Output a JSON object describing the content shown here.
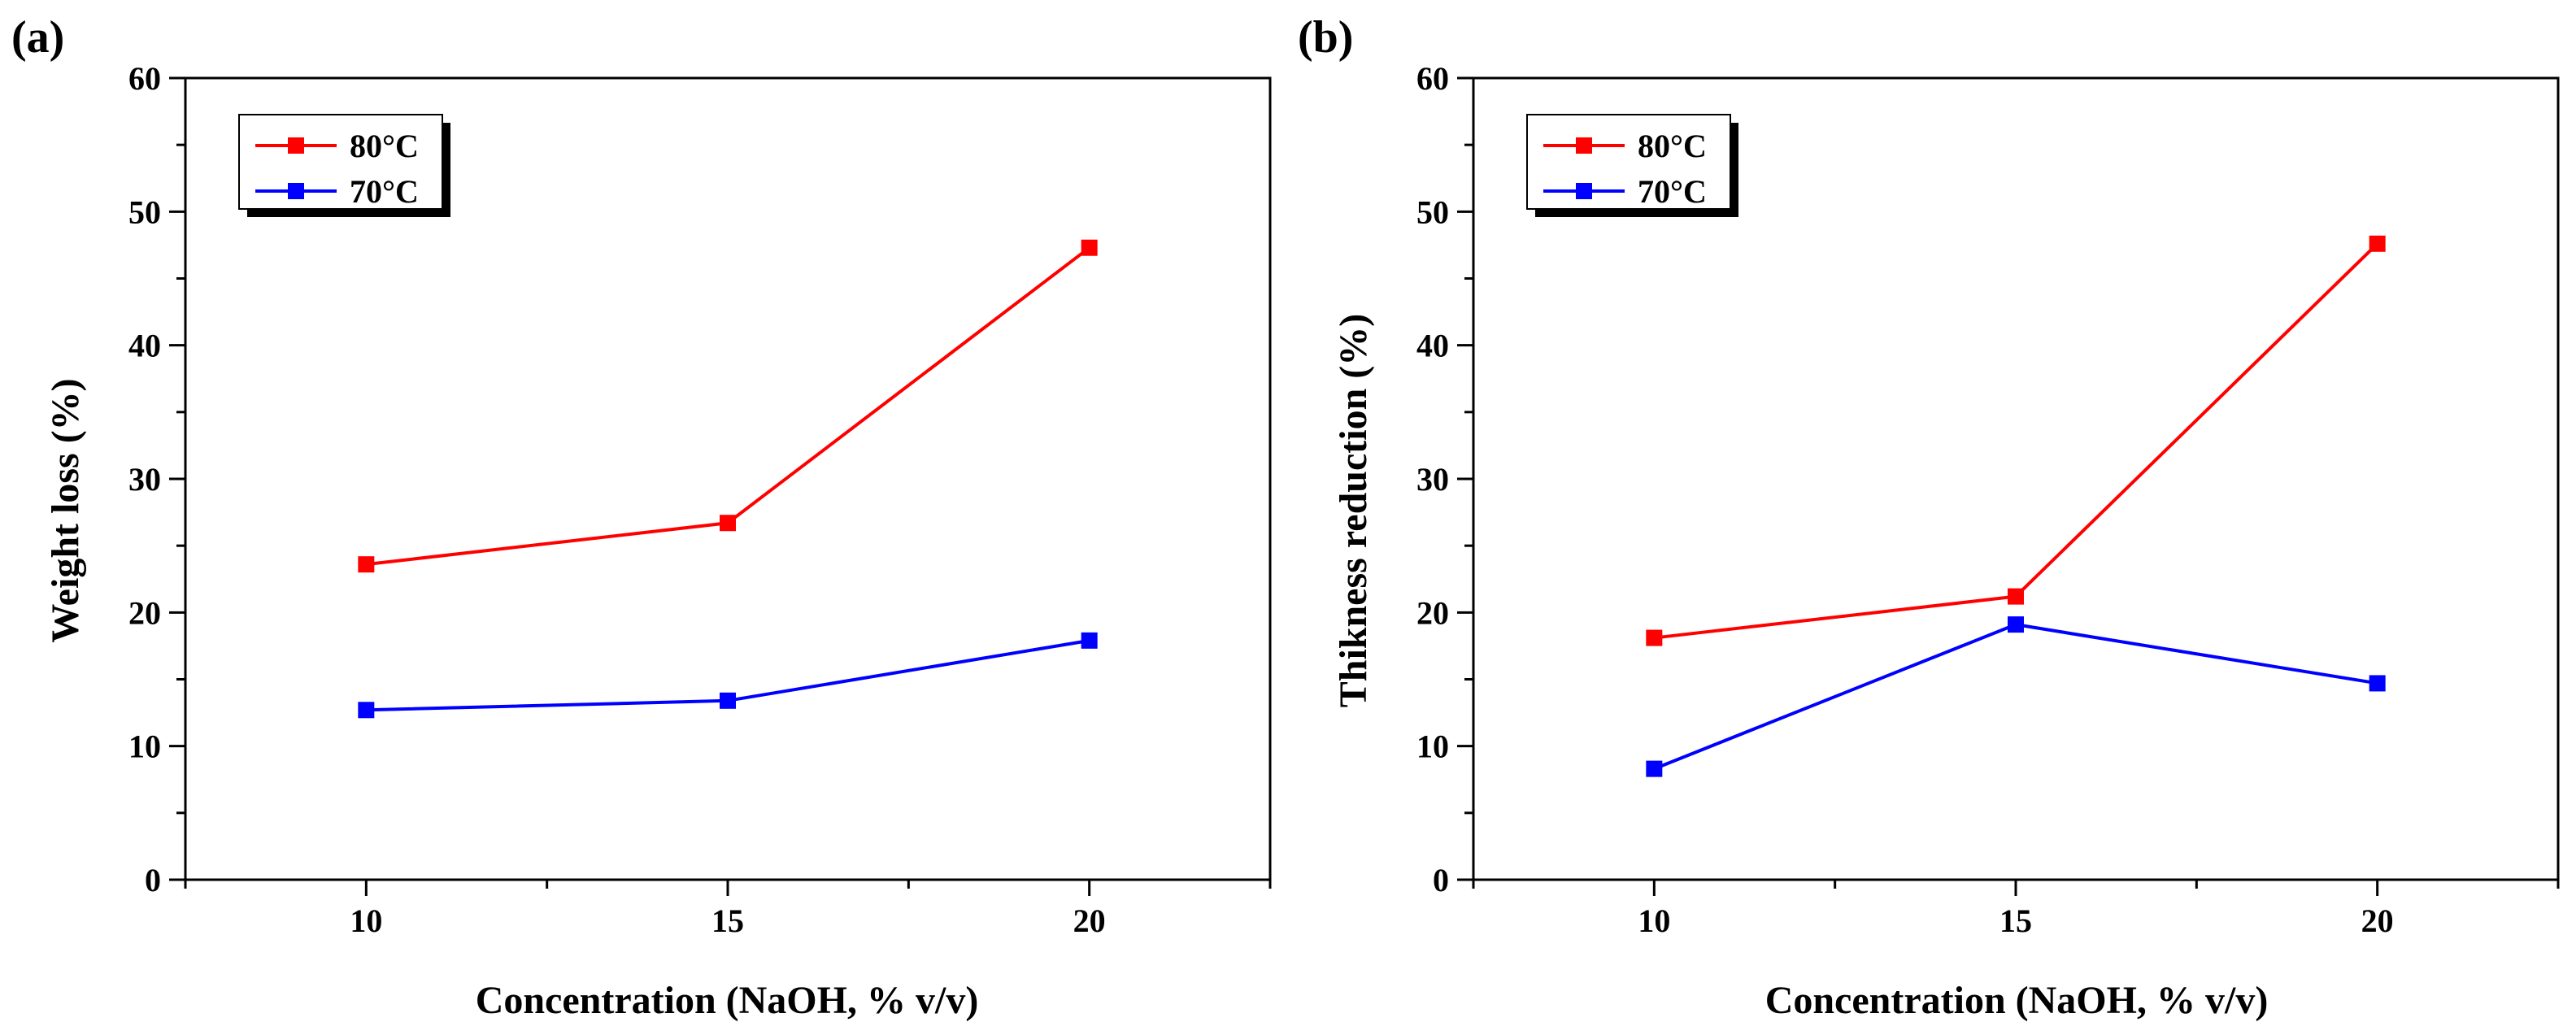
{
  "chart_data": [
    {
      "type": "line",
      "panel_label": "(a)",
      "title": "",
      "xlabel": "Concentration (NaOH, % v/v)",
      "ylabel": "Weight loss (%)",
      "x": [
        10,
        15,
        20
      ],
      "x_ticks": [
        10,
        15,
        20
      ],
      "xlim": [
        7.5,
        22.5
      ],
      "ylim": [
        0,
        60
      ],
      "y_ticks": [
        0,
        10,
        20,
        30,
        40,
        50,
        60
      ],
      "grid": false,
      "legend_position": "top-left",
      "series": [
        {
          "name": "80°C",
          "color": "#ff0000",
          "marker": "square",
          "values": [
            23.6,
            26.7,
            47.3
          ]
        },
        {
          "name": "70°C",
          "color": "#0000ff",
          "marker": "square",
          "values": [
            12.7,
            13.4,
            17.9
          ]
        }
      ]
    },
    {
      "type": "line",
      "panel_label": "(b)",
      "title": "",
      "xlabel": "Concentration (NaOH, % v/v)",
      "ylabel": "Thikness reduction (%)",
      "x": [
        10,
        15,
        20
      ],
      "x_ticks": [
        10,
        15,
        20
      ],
      "xlim": [
        7.5,
        22.5
      ],
      "ylim": [
        0,
        60
      ],
      "y_ticks": [
        0,
        10,
        20,
        30,
        40,
        50,
        60
      ],
      "grid": false,
      "legend_position": "top-left",
      "series": [
        {
          "name": "80°C",
          "color": "#ff0000",
          "marker": "square",
          "values": [
            18.1,
            21.2,
            47.6
          ]
        },
        {
          "name": "70°C",
          "color": "#0000ff",
          "marker": "square",
          "values": [
            8.3,
            19.1,
            14.7
          ]
        }
      ]
    }
  ]
}
